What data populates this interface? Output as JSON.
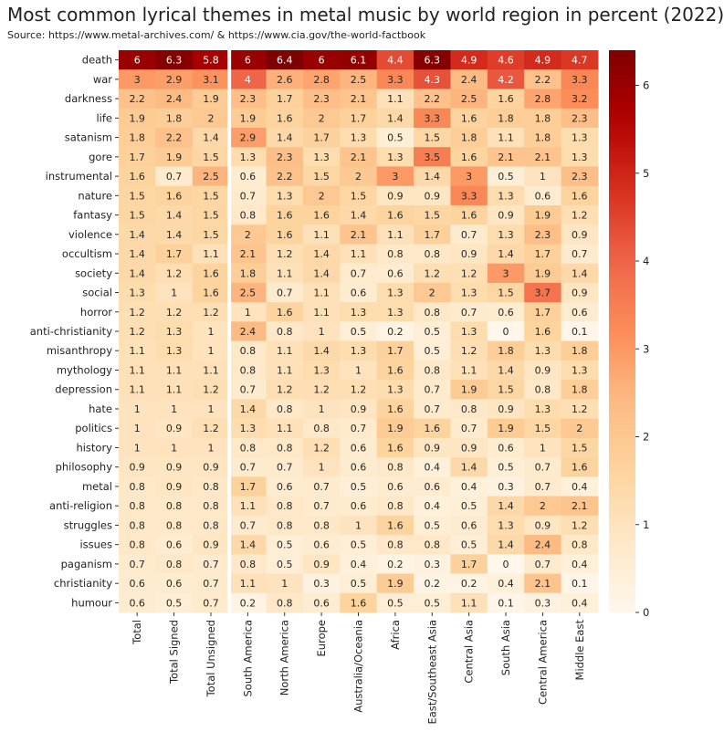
{
  "title": "Most common lyrical themes in metal music by world region in percent (2022)",
  "source": "Source: https://www.metal-archives.com/ & https://www.cia.gov/the-world-factbook",
  "chart_data": {
    "type": "heatmap",
    "colormap": "OrRd",
    "color_range": [
      0,
      6.4
    ],
    "colorbar_ticks": [
      0,
      1,
      2,
      3,
      4,
      5,
      6
    ],
    "columns": [
      "Total",
      "Total Signed",
      "Total Unsigned",
      "South America",
      "North America",
      "Europe",
      "Australia/Oceania",
      "Africa",
      "East/Southeast Asia",
      "Central Asia",
      "South Asia",
      "Central America",
      "Middle East"
    ],
    "rows": [
      "death",
      "war",
      "darkness",
      "life",
      "satanism",
      "gore",
      "instrumental",
      "nature",
      "fantasy",
      "violence",
      "occultism",
      "society",
      "social",
      "horror",
      "anti-christianity",
      "misanthropy",
      "mythology",
      "depression",
      "hate",
      "politics",
      "history",
      "philosophy",
      "metal",
      "anti-religion",
      "struggles",
      "issues",
      "paganism",
      "christianity",
      "humour"
    ],
    "values": [
      [
        6,
        6.3,
        5.8,
        6,
        6.4,
        6,
        6.1,
        4.4,
        6.3,
        4.9,
        4.6,
        4.9,
        4.7
      ],
      [
        3,
        2.9,
        3.1,
        4,
        2.6,
        2.8,
        2.5,
        3.3,
        4.3,
        2.4,
        4.2,
        2.2,
        3.3
      ],
      [
        2.2,
        2.4,
        1.9,
        2.3,
        1.7,
        2.3,
        2.1,
        1.1,
        2.2,
        2.5,
        1.6,
        2.8,
        3.2
      ],
      [
        1.9,
        1.8,
        2,
        1.9,
        1.6,
        2,
        1.7,
        1.4,
        3.3,
        1.6,
        1.8,
        1.8,
        2.3
      ],
      [
        1.8,
        2.2,
        1.4,
        2.9,
        1.4,
        1.7,
        1.3,
        0.5,
        1.5,
        1.8,
        1.1,
        1.8,
        1.3
      ],
      [
        1.7,
        1.9,
        1.5,
        1.3,
        2.3,
        1.3,
        2.1,
        1.3,
        3.5,
        1.6,
        2.1,
        2.1,
        1.3
      ],
      [
        1.6,
        0.7,
        2.5,
        0.6,
        2.2,
        1.5,
        2,
        3,
        1.4,
        3,
        0.5,
        1,
        2.3
      ],
      [
        1.5,
        1.6,
        1.5,
        0.7,
        1.3,
        2,
        1.5,
        0.9,
        0.9,
        3.3,
        1.3,
        0.6,
        1.6
      ],
      [
        1.5,
        1.4,
        1.5,
        0.8,
        1.6,
        1.6,
        1.4,
        1.6,
        1.5,
        1.6,
        0.9,
        1.9,
        1.2
      ],
      [
        1.4,
        1.4,
        1.5,
        2,
        1.6,
        1.1,
        2.1,
        1.1,
        1.7,
        0.7,
        1.3,
        2.3,
        0.9
      ],
      [
        1.4,
        1.7,
        1.1,
        2.1,
        1.2,
        1.4,
        1.1,
        0.8,
        0.8,
        0.9,
        1.4,
        1.7,
        0.7
      ],
      [
        1.4,
        1.2,
        1.6,
        1.8,
        1.1,
        1.4,
        0.7,
        0.6,
        1.2,
        1.2,
        3,
        1.9,
        1.4
      ],
      [
        1.3,
        1,
        1.6,
        2.5,
        0.7,
        1.1,
        0.6,
        1.3,
        2,
        1.3,
        1.5,
        3.7,
        0.9
      ],
      [
        1.2,
        1.2,
        1.2,
        1,
        1.6,
        1.1,
        1.3,
        1.3,
        0.8,
        0.7,
        0.6,
        1.7,
        0.6
      ],
      [
        1.2,
        1.3,
        1,
        2.4,
        0.8,
        1,
        0.5,
        0.2,
        0.5,
        1.3,
        0,
        1.6,
        0.1
      ],
      [
        1.1,
        1.3,
        1,
        0.8,
        1.1,
        1.4,
        1.3,
        1.7,
        0.5,
        1.2,
        1.8,
        1.3,
        1.8
      ],
      [
        1.1,
        1.1,
        1.1,
        0.8,
        1.1,
        1.3,
        1,
        1.6,
        0.8,
        1.1,
        1.4,
        0.9,
        1.3
      ],
      [
        1.1,
        1.1,
        1.2,
        0.7,
        1.2,
        1.2,
        1.2,
        1.3,
        0.7,
        1.9,
        1.5,
        0.8,
        1.8
      ],
      [
        1,
        1,
        1,
        1.4,
        0.8,
        1,
        0.9,
        1.6,
        0.7,
        0.8,
        0.9,
        1.3,
        1.2
      ],
      [
        1,
        0.9,
        1.2,
        1.3,
        1.1,
        0.8,
        0.7,
        1.9,
        1.6,
        0.7,
        1.9,
        1.5,
        2
      ],
      [
        1,
        1,
        1,
        0.8,
        0.8,
        1.2,
        0.6,
        1.6,
        0.9,
        0.9,
        0.6,
        1,
        1.5
      ],
      [
        0.9,
        0.9,
        0.9,
        0.7,
        0.7,
        1,
        0.6,
        0.8,
        0.4,
        1.4,
        0.5,
        0.7,
        1.6
      ],
      [
        0.8,
        0.9,
        0.8,
        1.7,
        0.6,
        0.7,
        0.5,
        0.6,
        0.6,
        0.4,
        0.3,
        0.7,
        0.4
      ],
      [
        0.8,
        0.8,
        0.8,
        1.1,
        0.8,
        0.7,
        0.6,
        0.8,
        0.4,
        0.5,
        1.4,
        2,
        2.1
      ],
      [
        0.8,
        0.8,
        0.8,
        0.7,
        0.8,
        0.8,
        1,
        1.6,
        0.5,
        0.6,
        1.3,
        0.9,
        1.2
      ],
      [
        0.8,
        0.6,
        0.9,
        1.4,
        0.5,
        0.6,
        0.5,
        0.8,
        0.8,
        0.5,
        1.4,
        2.4,
        0.8
      ],
      [
        0.7,
        0.8,
        0.7,
        0.8,
        0.5,
        0.9,
        0.4,
        0.2,
        0.3,
        1.7,
        0,
        0.7,
        0.4
      ],
      [
        0.6,
        0.6,
        0.7,
        1.1,
        1,
        0.3,
        0.5,
        1.9,
        0.2,
        0.2,
        0.4,
        2.1,
        0.1
      ],
      [
        0.6,
        0.5,
        0.7,
        0.2,
        0.8,
        0.6,
        1.6,
        0.5,
        0.5,
        1.1,
        0.1,
        0.3,
        0.4
      ]
    ]
  }
}
